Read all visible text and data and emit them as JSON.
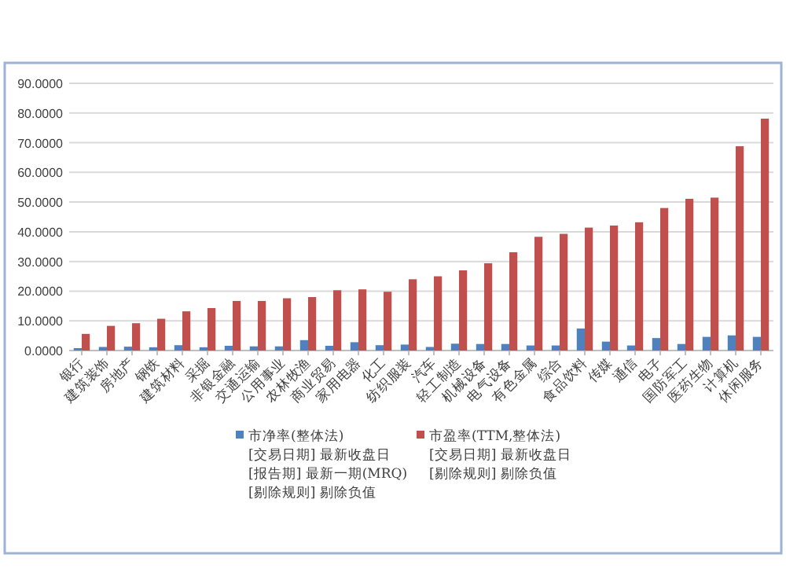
{
  "chart_data": {
    "type": "bar",
    "categories": [
      "银行",
      "建筑装饰",
      "房地产",
      "钢铁",
      "建筑材料",
      "采掘",
      "非银金融",
      "交通运输",
      "公用事业",
      "农林牧渔",
      "商业贸易",
      "家用电器",
      "化工",
      "纺织服装",
      "汽车",
      "轻工制造",
      "机械设备",
      "电气设备",
      "有色金属",
      "综合",
      "食品饮料",
      "传媒",
      "通信",
      "电子",
      "国防军工",
      "医药生物",
      "计算机",
      "休闲服务"
    ],
    "series": [
      {
        "name": "市净率(整体法)\n[交易日期] 最新收盘日\n[报告期] 最新一期(MRQ)\n[剔除规则] 剔除负值",
        "color": "#4f81bd",
        "values": [
          0.8,
          1.2,
          1.3,
          1.1,
          1.8,
          1.1,
          1.6,
          1.4,
          1.4,
          3.5,
          1.6,
          2.8,
          1.8,
          2.0,
          1.2,
          2.3,
          2.2,
          2.2,
          1.7,
          1.7,
          7.4,
          3.0,
          1.7,
          4.2,
          2.2,
          4.6,
          5.1,
          4.6
        ]
      },
      {
        "name": "市盈率(TTM,整体法)\n[交易日期] 最新收盘日\n[剔除规则] 剔除负值",
        "color": "#c0504d",
        "values": [
          5.6,
          8.3,
          9.2,
          10.7,
          13.2,
          14.3,
          16.7,
          16.7,
          17.6,
          18.0,
          20.3,
          20.6,
          19.8,
          24.0,
          25.0,
          27.0,
          29.4,
          33.1,
          38.3,
          39.3,
          41.4,
          42.1,
          43.2,
          48.0,
          51.1,
          51.5,
          68.8,
          78.1
        ]
      }
    ],
    "ylim": [
      0,
      90
    ],
    "yticks": [
      {
        "value": 0,
        "label": "0.0000"
      },
      {
        "value": 10,
        "label": "10.0000"
      },
      {
        "value": 20,
        "label": "20.0000"
      },
      {
        "value": 30,
        "label": "30.0000"
      },
      {
        "value": 40,
        "label": "40.0000"
      },
      {
        "value": 50,
        "label": "50.0000"
      },
      {
        "value": 60,
        "label": "60.0000"
      },
      {
        "value": 70,
        "label": "70.0000"
      },
      {
        "value": 80,
        "label": "80.0000"
      },
      {
        "value": 90,
        "label": "90.0000"
      }
    ],
    "grid": "y",
    "legend": "bottom"
  }
}
